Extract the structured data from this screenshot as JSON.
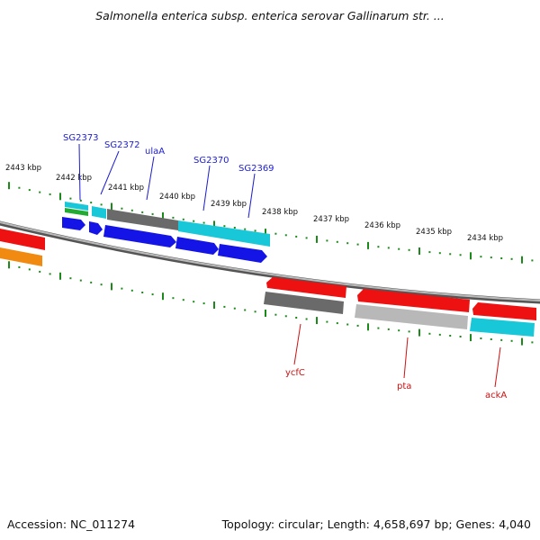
{
  "title": "Salmonella enterica subsp. enterica serovar Gallinarum str. ...",
  "footer": {
    "accession": "Accession: NC_011274",
    "summary": "Topology: circular; Length: 4,658,697 bp; Genes: 4,040"
  },
  "colors": {
    "tick": "#1b8a1b",
    "backbone": "#8a8a8a",
    "forward_label": "#1c1cd0",
    "reverse_label": "#cc1111",
    "blue": "#1414e6",
    "cyan": "#18c8d8",
    "darkgray": "#6a6a6a",
    "lightgray": "#b8b8b8",
    "red": "#ee1111",
    "orange": "#f08a10",
    "green": "#22aa33"
  },
  "kbp_labels": [
    "2443 kbp",
    "2442 kbp",
    "2441 kbp",
    "2440 kbp",
    "2439 kbp",
    "2438 kbp",
    "2437 kbp",
    "2436 kbp",
    "2435 kbp",
    "2434 kbp"
  ],
  "forward_genes": [
    "SG2373",
    "SG2372",
    "ulaA",
    "SG2370",
    "SG2369"
  ],
  "reverse_genes": [
    "ycfC",
    "pta",
    "ackA"
  ]
}
